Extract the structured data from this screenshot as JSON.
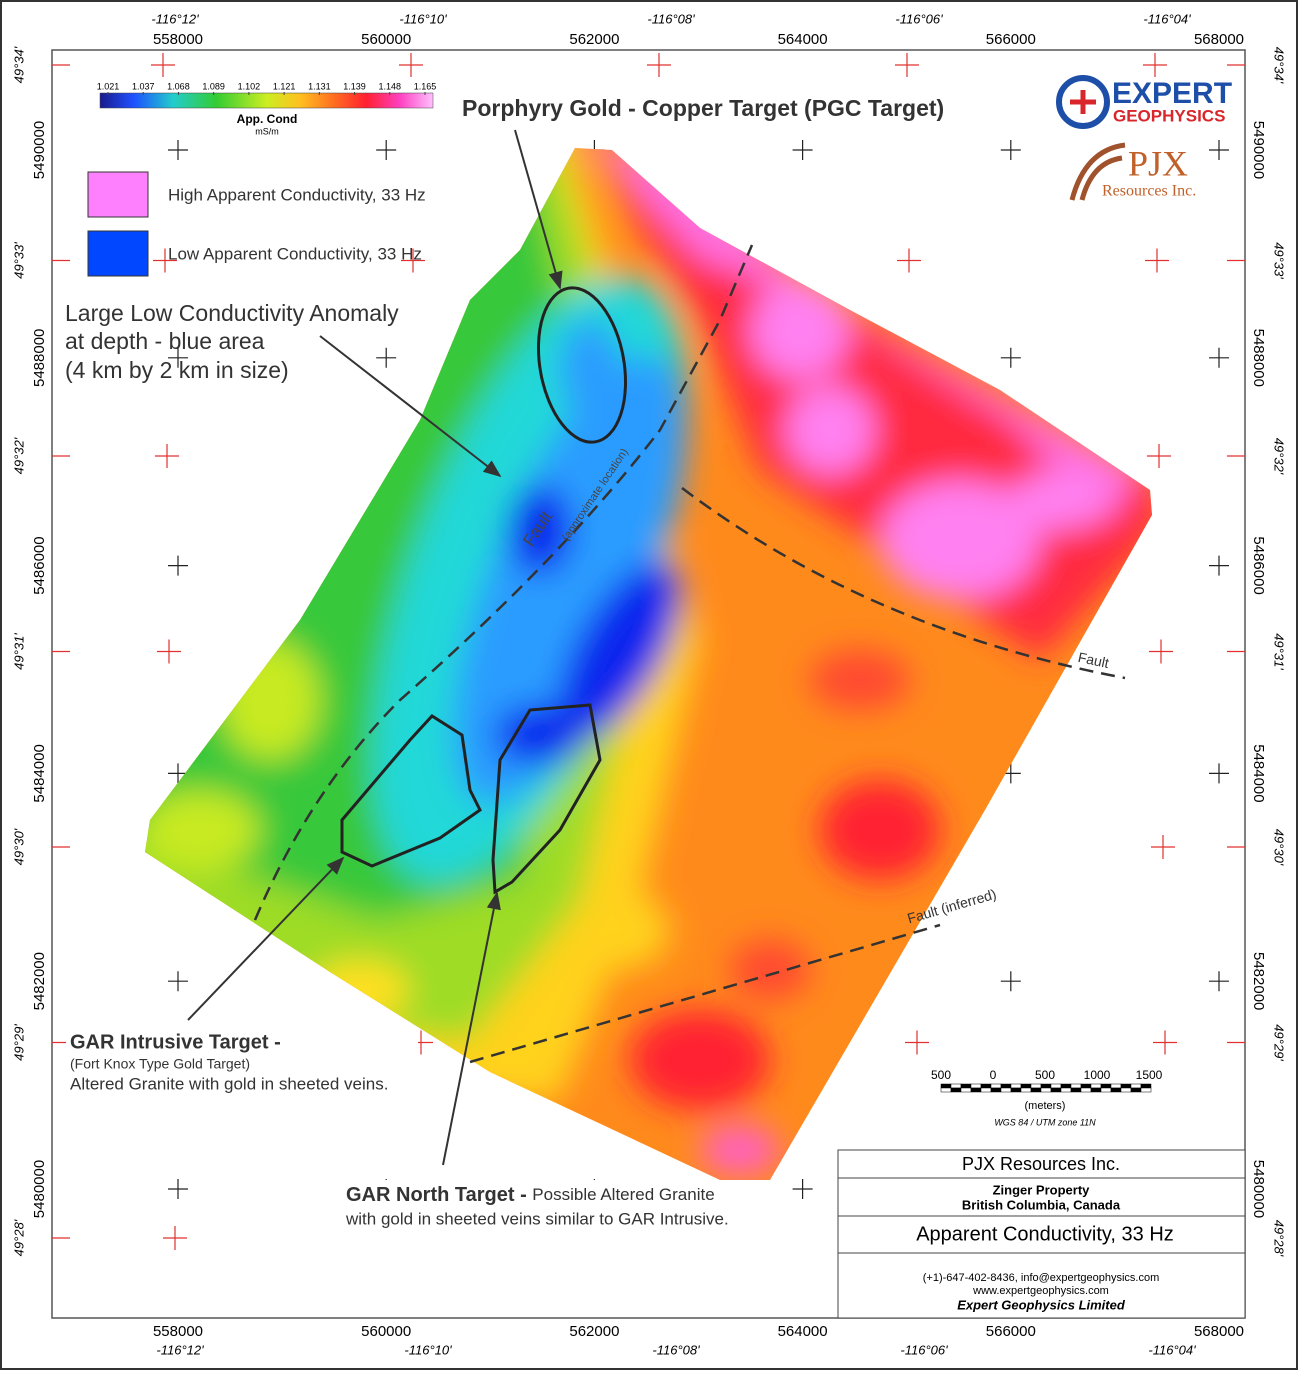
{
  "longitudes": [
    "-116°12'",
    "-116°10'",
    "-116°08'",
    "-116°06'",
    "-116°04'"
  ],
  "eastings": [
    558000,
    560000,
    562000,
    564000,
    566000,
    568000
  ],
  "northings": [
    5490000,
    5488000,
    5486000,
    5484000,
    5482000,
    5480000
  ],
  "latitudes": [
    "49°34'",
    "49°33'",
    "49°32'",
    "49°31'",
    "49°30'",
    "49°29'",
    "49°28'"
  ],
  "color_scale": {
    "title": "App. Cond",
    "unit": "mS/m",
    "ticks": [
      1.021,
      1.037,
      1.068,
      1.089,
      1.102,
      1.121,
      1.131,
      1.139,
      1.148,
      1.165
    ]
  },
  "legend": [
    {
      "label": "High Apparent Conductivity, 33 Hz",
      "color": "#ff80ff"
    },
    {
      "label": "Low Apparent Conductivity, 33 Hz",
      "color": "#0047ff"
    }
  ],
  "annotations": {
    "pgc": "Porphyry Gold - Copper Target (PGC Target)",
    "low_anomaly": [
      "Large Low Conductivity Anomaly",
      "at depth - blue area",
      "(4 km by 2 km in size)"
    ],
    "fault_center": "Fault",
    "fault_center_note": "(approximate location)",
    "fault_right": "Fault",
    "fault_inferred": "Fault (inferred)",
    "gar_intrusive": {
      "title": "GAR Intrusive Target -",
      "subtitle": "(Fort Knox Type Gold Target)",
      "text": "Altered Granite with gold in sheeted veins."
    },
    "gar_north": {
      "title": "GAR North Target -",
      "text": "Possible Altered Granite",
      "text2": "with gold in sheeted veins similar to GAR Intrusive."
    }
  },
  "logos": {
    "expert": "EXPERT",
    "geophysics": "GEOPHYSICS",
    "pjx": "PJX",
    "pjx_sub": "Resources Inc."
  },
  "scale_bar": {
    "labels": [
      500,
      0,
      500,
      1000,
      1500
    ],
    "unit": "(meters)",
    "projection": "WGS 84 / UTM zone 11N"
  },
  "title_block": {
    "company": "PJX Resources Inc.",
    "property": "Zinger Property",
    "location": "British Columbia, Canada",
    "map_title": "Apparent Conductivity, 33 Hz",
    "contact": "(+1)-647-402-8436, info@expertgeophysics.com",
    "website": "www.expertgeophysics.com",
    "publisher": "Expert Geophysics Limited"
  }
}
